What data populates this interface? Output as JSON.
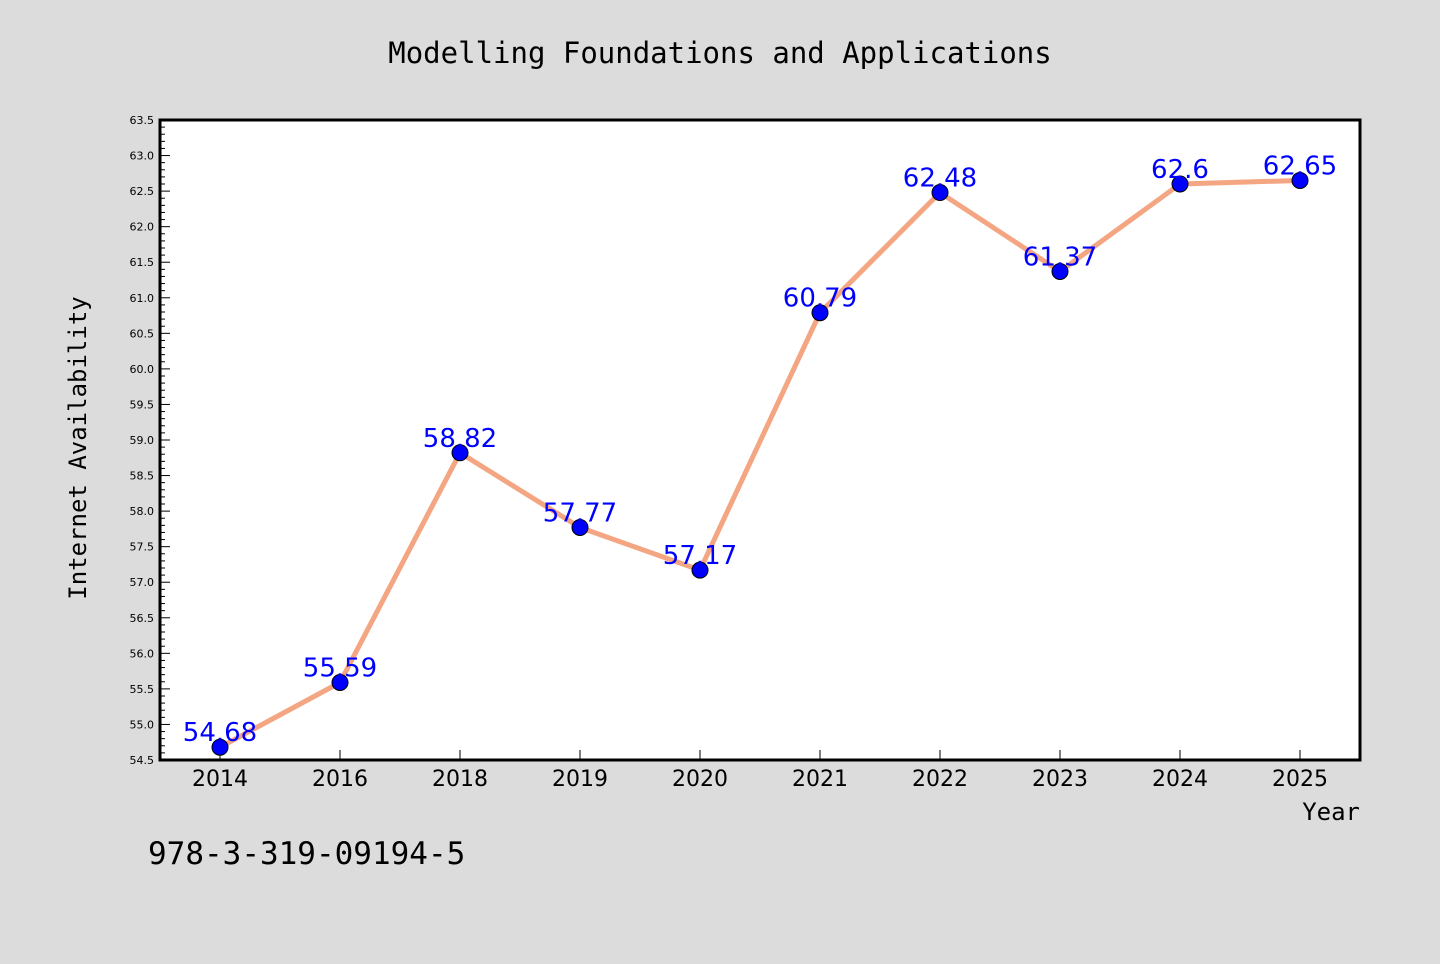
{
  "chart_data": {
    "type": "line",
    "title": "Modelling Foundations and Applications",
    "xlabel": "Year",
    "ylabel": "Internet Availability",
    "categories": [
      "2014",
      "2016",
      "2018",
      "2019",
      "2020",
      "2021",
      "2022",
      "2023",
      "2024",
      "2025"
    ],
    "series": [
      {
        "values": [
          54.68,
          55.59,
          58.82,
          57.77,
          57.17,
          60.79,
          62.48,
          61.37,
          62.6,
          62.65
        ],
        "data_labels": [
          "54.68",
          "55.59",
          "58.82",
          "57.77",
          "57.17",
          "60.79",
          "62.48",
          "61.37",
          "62.6",
          "62.65"
        ],
        "line_color": "#f4a582",
        "marker_color": "#0000ff",
        "label_color": "#0000ff"
      }
    ],
    "ylim": [
      54.5,
      63.5
    ],
    "y_ticks": [
      "54.5",
      "55.0",
      "55.5",
      "56.0",
      "56.5",
      "57.0",
      "57.5",
      "58.0",
      "58.5",
      "59.0",
      "59.5",
      "60.0",
      "60.5",
      "61.0",
      "61.5",
      "62.0",
      "62.5",
      "63.0",
      "63.5"
    ],
    "grid": false,
    "legend": "none"
  },
  "footer_text": "978-3-319-09194-5",
  "colors": {
    "background": "#dcdcdc",
    "plot_background": "#ffffff",
    "axis": "#000000"
  }
}
